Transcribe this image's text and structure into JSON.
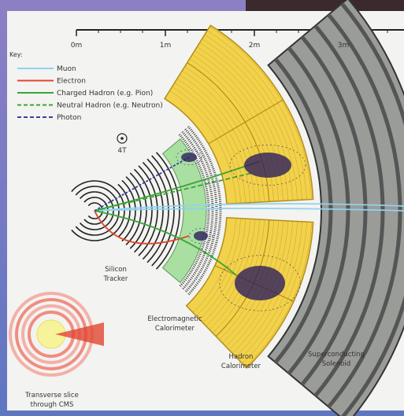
{
  "scale": {
    "ticks": [
      "0m",
      "1m",
      "2m",
      "3m"
    ]
  },
  "key": {
    "title": "Key:",
    "items": [
      {
        "label": "Muon",
        "color": "#8fd3ee",
        "dash": false
      },
      {
        "label": "Electron",
        "color": "#e2452f",
        "dash": false
      },
      {
        "label": "Charged Hadron (e.g. Pion)",
        "color": "#3aa535",
        "dash": false
      },
      {
        "label": "Neutral Hadron (e.g. Neutron)",
        "color": "#3aa535",
        "dash": true
      },
      {
        "label": "Photon",
        "color": "#3b3fa0",
        "dash": true
      }
    ]
  },
  "field": "4T",
  "labels": {
    "silicon_tracker": [
      "Silicon",
      "Tracker"
    ],
    "em_calorimeter": [
      "Electromagnetic",
      "Calorimeter"
    ],
    "hadron_calorimeter": [
      "Hadron",
      "Calorimeter"
    ],
    "solenoid": [
      "Superconducting",
      "Solenoid"
    ],
    "inset": [
      "Transverse slice",
      "through CMS"
    ]
  }
}
